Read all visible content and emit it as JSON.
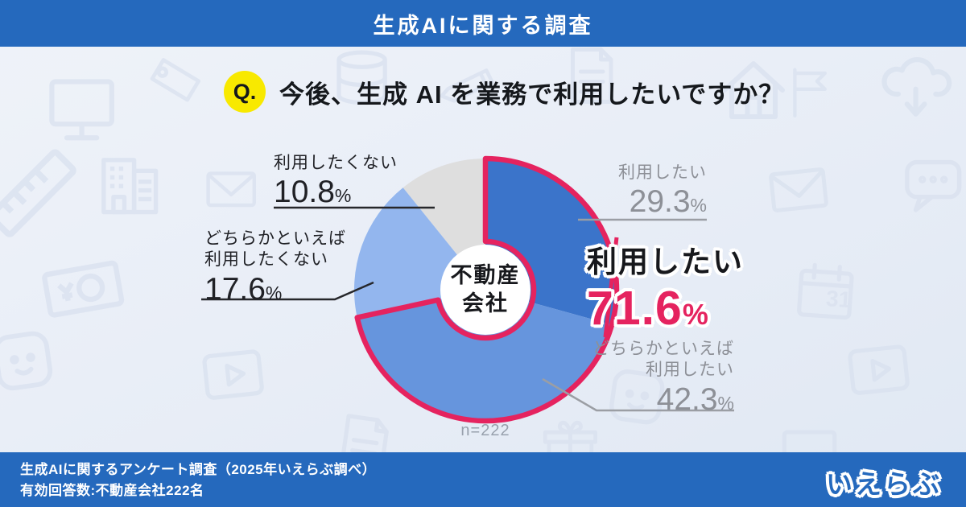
{
  "header": {
    "title": "生成AIに関する調査"
  },
  "question": {
    "badge": "Q.",
    "text": "今後、生成 AI を業務で利用したいですか？"
  },
  "donut": {
    "center_line1": "不動産",
    "center_line2": "会社",
    "sample_size": "n=222"
  },
  "labels": {
    "want": {
      "name": "利用したい",
      "value": "29.3",
      "unit": "%"
    },
    "rather_want": {
      "name_line1": "どちらかといえば",
      "name_line2": "利用したい",
      "value": "42.3",
      "unit": "%"
    },
    "rather_not": {
      "name_line1": "どちらかといえば",
      "name_line2": "利用したくない",
      "value": "17.6",
      "unit": "%"
    },
    "not_want": {
      "name": "利用したくない",
      "value": "10.8",
      "unit": "%"
    },
    "combined": {
      "name": "利用したい",
      "value": "71.6",
      "unit": "%"
    }
  },
  "footer": {
    "source_line1": "生成AIに関するアンケート調査（2025年いえらぶ調べ）",
    "source_line2": "有効回答数:不動産会社222名",
    "logo_text": "いえらぶ"
  },
  "watermark": {
    "calendar_day": "31"
  },
  "colors": {
    "bar_blue": "#2569bd",
    "accent_pink": "#e5235f",
    "badge_yellow": "#f8e900",
    "watermark": "#d9e1ef"
  },
  "chart_data": {
    "type": "pie",
    "donut": true,
    "title": "今後、生成 AI を業務で利用したいですか？",
    "categories": [
      "利用したい",
      "どちらかといえば利用したい",
      "どちらかといえば利用したくない",
      "利用したくない"
    ],
    "values": [
      29.3,
      42.3,
      17.6,
      10.8
    ],
    "colors": [
      "#3b74ca",
      "#6695dd",
      "#93b6ee",
      "#dedede"
    ],
    "center_label": "不動産会社",
    "sample_size": 222,
    "highlight": {
      "label": "利用したい",
      "value": 71.6,
      "note": "29.3% + 42.3%",
      "color": "#e5235f"
    }
  }
}
